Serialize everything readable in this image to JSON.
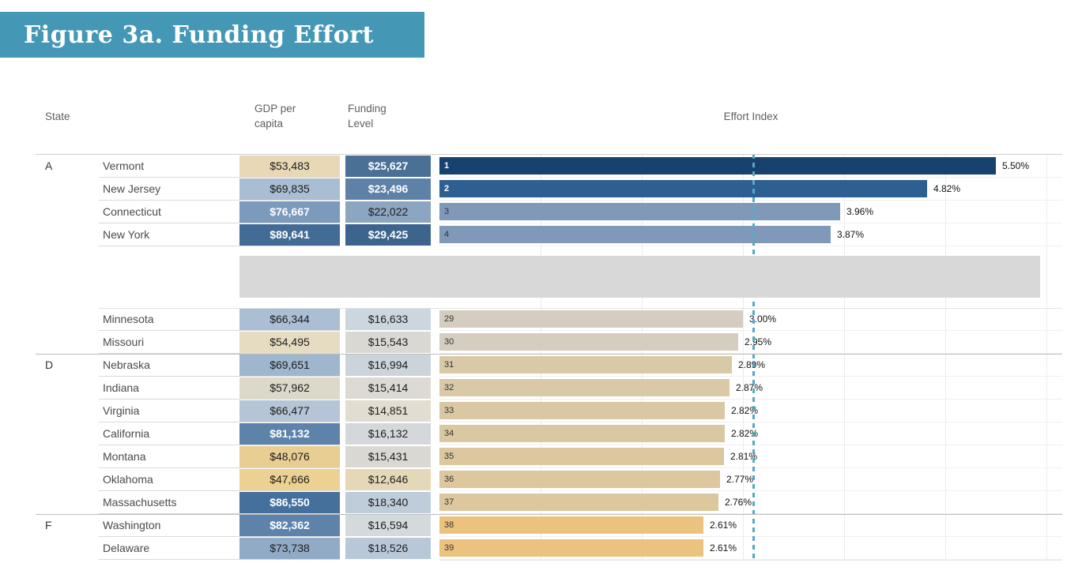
{
  "figure_title": "Figure 3a. Funding Effort",
  "columns": {
    "state": "State",
    "gdp": "GDP per capita",
    "funding": "Funding Level",
    "effort": "Effort Index"
  },
  "colors": {
    "banner": "#4497b5",
    "average_line": "#58a8c5",
    "truncation_band": "#d8d8d8"
  },
  "chart_data": {
    "type": "bar",
    "orientation": "horizontal",
    "value_unit": "percent of GDP",
    "xlim": [
      0,
      6.15
    ],
    "gridline_interval_pct": 1,
    "average_line_pct": 3.1,
    "grid": true,
    "note": "middle ranks 5-28 truncated (gray band)",
    "rows": [
      {
        "grade": "A",
        "state": "Vermont",
        "gdp": "$53,483",
        "funding": "$25,627",
        "rank": "1",
        "effort_pct": 5.5,
        "effort_label": "5.50%",
        "group": "top",
        "section_start": true,
        "gdp_bg": "#e8d8b6",
        "gdp_fg": "#1d1d1d",
        "funding_bg": "#4a7096",
        "funding_fg": "#ffffff",
        "bar": "#17416e",
        "rank_fg": "#ffffff"
      },
      {
        "grade": "",
        "state": "New Jersey",
        "gdp": "$69,835",
        "funding": "$23,496",
        "rank": "2",
        "effort_pct": 4.82,
        "effort_label": "4.82%",
        "group": "top",
        "section_start": false,
        "gdp_bg": "#a9bdd3",
        "gdp_fg": "#1d1d1d",
        "funding_bg": "#5d81a7",
        "funding_fg": "#ffffff",
        "bar": "#2e5f93",
        "rank_fg": "#ffffff"
      },
      {
        "grade": "",
        "state": "Connecticut",
        "gdp": "$76,667",
        "funding": "$22,022",
        "rank": "3",
        "effort_pct": 3.96,
        "effort_label": "3.96%",
        "group": "top",
        "section_start": false,
        "gdp_bg": "#7b9abc",
        "gdp_fg": "#ffffff",
        "funding_bg": "#8ca6c1",
        "funding_fg": "#1d1d1d",
        "bar": "#8099b9",
        "rank_fg": "#333333"
      },
      {
        "grade": "",
        "state": "New York",
        "gdp": "$89,641",
        "funding": "$29,425",
        "rank": "4",
        "effort_pct": 3.87,
        "effort_label": "3.87%",
        "group": "top",
        "section_start": false,
        "gdp_bg": "#426b96",
        "gdp_fg": "#ffffff",
        "funding_bg": "#3d648d",
        "funding_fg": "#ffffff",
        "bar": "#8099b9",
        "rank_fg": "#333333"
      },
      {
        "grade": "",
        "state": "Minnesota",
        "gdp": "$66,344",
        "funding": "$16,633",
        "rank": "29",
        "effort_pct": 3.0,
        "effort_label": "3.00%",
        "group": "bottom",
        "section_start": false,
        "gdp_bg": "#aabed4",
        "gdp_fg": "#1d1d1d",
        "funding_bg": "#ccd6de",
        "funding_fg": "#1d1d1d",
        "bar": "#d4cdc0",
        "rank_fg": "#333333"
      },
      {
        "grade": "",
        "state": "Missouri",
        "gdp": "$54,495",
        "funding": "$15,543",
        "rank": "30",
        "effort_pct": 2.95,
        "effort_label": "2.95%",
        "group": "bottom",
        "section_start": false,
        "gdp_bg": "#e6dcc2",
        "gdp_fg": "#1d1d1d",
        "funding_bg": "#d9d8d2",
        "funding_fg": "#1d1d1d",
        "bar": "#d4cdc0",
        "rank_fg": "#333333"
      },
      {
        "grade": "D",
        "state": "Nebraska",
        "gdp": "$69,651",
        "funding": "$16,994",
        "rank": "31",
        "effort_pct": 2.89,
        "effort_label": "2.89%",
        "group": "bottom",
        "section_start": true,
        "gdp_bg": "#9eb6ce",
        "gdp_fg": "#1d1d1d",
        "funding_bg": "#ccd4db",
        "funding_fg": "#1d1d1d",
        "bar": "#d9c9a6",
        "rank_fg": "#333333"
      },
      {
        "grade": "",
        "state": "Indiana",
        "gdp": "$57,962",
        "funding": "$15,414",
        "rank": "32",
        "effort_pct": 2.87,
        "effort_label": "2.87%",
        "group": "bottom",
        "section_start": false,
        "gdp_bg": "#dcd8ca",
        "gdp_fg": "#1d1d1d",
        "funding_bg": "#dcdad3",
        "funding_fg": "#1d1d1d",
        "bar": "#d9c9a6",
        "rank_fg": "#333333"
      },
      {
        "grade": "",
        "state": "Virginia",
        "gdp": "$66,477",
        "funding": "$14,851",
        "rank": "33",
        "effort_pct": 2.82,
        "effort_label": "2.82%",
        "group": "bottom",
        "section_start": false,
        "gdp_bg": "#b5c4d7",
        "gdp_fg": "#1d1d1d",
        "funding_bg": "#e3ddd1",
        "funding_fg": "#1d1d1d",
        "bar": "#dac8a2",
        "rank_fg": "#333333"
      },
      {
        "grade": "",
        "state": "California",
        "gdp": "$81,132",
        "funding": "$16,132",
        "rank": "34",
        "effort_pct": 2.82,
        "effort_label": "2.82%",
        "group": "bottom",
        "section_start": false,
        "gdp_bg": "#5e83ab",
        "gdp_fg": "#ffffff",
        "funding_bg": "#d4d8da",
        "funding_fg": "#1d1d1d",
        "bar": "#dac8a2",
        "rank_fg": "#333333"
      },
      {
        "grade": "",
        "state": "Montana",
        "gdp": "$48,076",
        "funding": "$15,431",
        "rank": "35",
        "effort_pct": 2.81,
        "effort_label": "2.81%",
        "group": "bottom",
        "section_start": false,
        "gdp_bg": "#e8ce93",
        "gdp_fg": "#1d1d1d",
        "funding_bg": "#d9d8d2",
        "funding_fg": "#1d1d1d",
        "bar": "#dcc79e",
        "rank_fg": "#333333"
      },
      {
        "grade": "",
        "state": "Oklahoma",
        "gdp": "$47,666",
        "funding": "$12,646",
        "rank": "36",
        "effort_pct": 2.77,
        "effort_label": "2.77%",
        "group": "bottom",
        "section_start": false,
        "gdp_bg": "#ecd192",
        "gdp_fg": "#1d1d1d",
        "funding_bg": "#e5d8b9",
        "funding_fg": "#1d1d1d",
        "bar": "#dcc79e",
        "rank_fg": "#333333"
      },
      {
        "grade": "",
        "state": "Massachusetts",
        "gdp": "$86,550",
        "funding": "$18,340",
        "rank": "37",
        "effort_pct": 2.76,
        "effort_label": "2.76%",
        "group": "bottom",
        "section_start": false,
        "gdp_bg": "#45709c",
        "gdp_fg": "#ffffff",
        "funding_bg": "#bfccda",
        "funding_fg": "#1d1d1d",
        "bar": "#dcc79e",
        "rank_fg": "#333333"
      },
      {
        "grade": "F",
        "state": "Washington",
        "gdp": "$82,362",
        "funding": "$16,594",
        "rank": "38",
        "effort_pct": 2.61,
        "effort_label": "2.61%",
        "group": "bottom",
        "section_start": true,
        "gdp_bg": "#5e83ab",
        "gdp_fg": "#ffffff",
        "funding_bg": "#d4d9dc",
        "funding_fg": "#1d1d1d",
        "bar": "#ebc37e",
        "rank_fg": "#333333"
      },
      {
        "grade": "",
        "state": "Delaware",
        "gdp": "$73,738",
        "funding": "$18,526",
        "rank": "39",
        "effort_pct": 2.61,
        "effort_label": "2.61%",
        "group": "bottom",
        "section_start": false,
        "gdp_bg": "#91abc7",
        "gdp_fg": "#1d1d1d",
        "funding_bg": "#b9c8d9",
        "funding_fg": "#1d1d1d",
        "bar": "#ebc37e",
        "rank_fg": "#333333"
      }
    ]
  }
}
